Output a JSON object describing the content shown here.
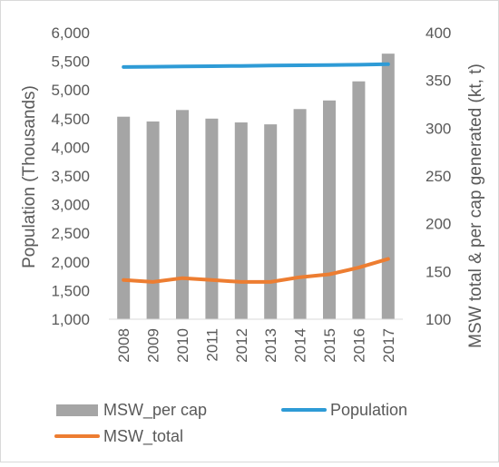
{
  "chart_data": {
    "type": "bar",
    "categories": [
      "2008",
      "2009",
      "2010",
      "2011",
      "2012",
      "2013",
      "2014",
      "2015",
      "2016",
      "2017"
    ],
    "series": [
      {
        "name": "MSW_per cap",
        "type": "bar",
        "axis": "right",
        "color": "#a5a5a5",
        "values": [
          312,
          307,
          319,
          310,
          306,
          304,
          320,
          329,
          349,
          378
        ]
      },
      {
        "name": "Population",
        "type": "line",
        "axis": "left",
        "color": "#2e9bd6",
        "values": [
          5400,
          5405,
          5410,
          5415,
          5420,
          5425,
          5430,
          5435,
          5440,
          5450
        ]
      },
      {
        "name": "MSW_total",
        "type": "line",
        "axis": "right",
        "color": "#ed7d31",
        "values": [
          141,
          139,
          143,
          141,
          139,
          139,
          144,
          147,
          154,
          163
        ]
      }
    ],
    "y_left": {
      "label": "Population (Thousands)",
      "ylim": [
        1000,
        6000
      ],
      "ticks": [
        "1,000",
        "1,500",
        "2,000",
        "2,500",
        "3,000",
        "3,500",
        "4,000",
        "4,500",
        "5,000",
        "5,500",
        "6,000"
      ]
    },
    "y_right": {
      "label": "MSW total & per cap generated (kt, t)",
      "ylim": [
        100,
        400
      ],
      "ticks": [
        "100",
        "150",
        "200",
        "250",
        "300",
        "350",
        "400"
      ]
    },
    "grid": false,
    "legend_position": "bottom"
  }
}
